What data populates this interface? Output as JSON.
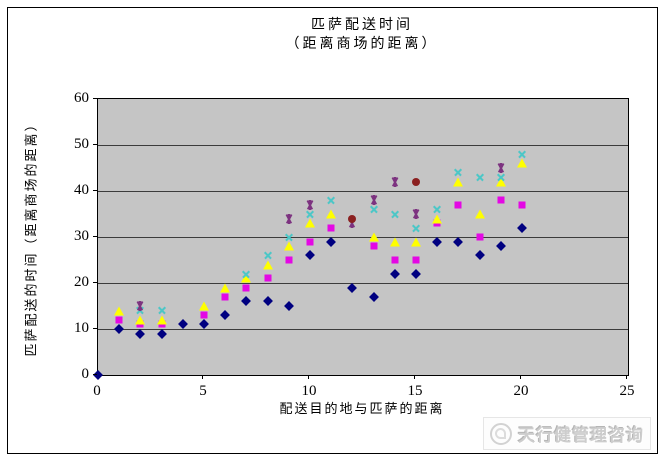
{
  "chart_data": {
    "type": "scatter",
    "title": "匹萨配送时间",
    "subtitle": "（距离商场的距离）",
    "xlabel": "配送目的地与匹萨的距离",
    "ylabel": "匹萨配送的时间（距离商场的距离）",
    "xlim": [
      0,
      25
    ],
    "ylim": [
      0,
      60
    ],
    "xticks": [
      0,
      5,
      10,
      15,
      20,
      25
    ],
    "yticks": [
      0,
      10,
      20,
      30,
      40,
      50,
      60
    ],
    "grid": "horizontal",
    "legend": "none",
    "plot_bg_color": "#c5c5c5",
    "series": [
      {
        "name": "diamond-series",
        "marker": "diamond",
        "color": "#000080",
        "points": [
          [
            0,
            0
          ],
          [
            1,
            10
          ],
          [
            2,
            9
          ],
          [
            3,
            9
          ],
          [
            4,
            11
          ],
          [
            5,
            11
          ],
          [
            6,
            13
          ],
          [
            7,
            16
          ],
          [
            8,
            16
          ],
          [
            9,
            15
          ],
          [
            10,
            26
          ],
          [
            11,
            29
          ],
          [
            12,
            19
          ],
          [
            13,
            17
          ],
          [
            14,
            22
          ],
          [
            15,
            22
          ],
          [
            16,
            29
          ],
          [
            17,
            29
          ],
          [
            18,
            26
          ],
          [
            19,
            28
          ],
          [
            20,
            32
          ]
        ]
      },
      {
        "name": "square-series",
        "marker": "square",
        "color": "#e408e4",
        "points": [
          [
            1,
            12
          ],
          [
            2,
            11
          ],
          [
            3,
            11
          ],
          [
            5,
            13
          ],
          [
            6,
            17
          ],
          [
            7,
            19
          ],
          [
            8,
            21
          ],
          [
            9,
            25
          ],
          [
            10,
            29
          ],
          [
            11,
            32
          ],
          [
            13,
            28
          ],
          [
            14,
            25
          ],
          [
            15,
            25
          ],
          [
            16,
            33
          ],
          [
            17,
            37
          ],
          [
            18,
            30
          ],
          [
            19,
            38
          ],
          [
            20,
            37
          ]
        ]
      },
      {
        "name": "triangle-series",
        "marker": "triangle",
        "color": "#ffff00",
        "points": [
          [
            1,
            14
          ],
          [
            2,
            12
          ],
          [
            3,
            12
          ],
          [
            5,
            15
          ],
          [
            6,
            19
          ],
          [
            7,
            21
          ],
          [
            8,
            24
          ],
          [
            9,
            28
          ],
          [
            10,
            33
          ],
          [
            11,
            35
          ],
          [
            13,
            30
          ],
          [
            14,
            29
          ],
          [
            15,
            29
          ],
          [
            16,
            34
          ],
          [
            17,
            42
          ],
          [
            18,
            35
          ],
          [
            19,
            42
          ],
          [
            20,
            46
          ]
        ]
      },
      {
        "name": "x-mark-series",
        "marker": "x",
        "color": "#4cc7c7",
        "points": [
          [
            2,
            14
          ],
          [
            3,
            14
          ],
          [
            7,
            22
          ],
          [
            8,
            26
          ],
          [
            9,
            30
          ],
          [
            10,
            35
          ],
          [
            11,
            38
          ],
          [
            13,
            36
          ],
          [
            14,
            35
          ],
          [
            15,
            32
          ],
          [
            16,
            36
          ],
          [
            17,
            44
          ],
          [
            18,
            43
          ],
          [
            19,
            43
          ],
          [
            20,
            48
          ]
        ]
      },
      {
        "name": "asterisk-series",
        "marker": "star",
        "color": "#7d3380",
        "points": [
          [
            2,
            15
          ],
          [
            9,
            34
          ],
          [
            10,
            37
          ],
          [
            12,
            33
          ],
          [
            13,
            38
          ],
          [
            14,
            42
          ],
          [
            15,
            35
          ],
          [
            19,
            45
          ]
        ]
      },
      {
        "name": "dark-red-circle-series",
        "marker": "circle",
        "color": "#8b2020",
        "points": [
          [
            12,
            34
          ],
          [
            15,
            42
          ]
        ]
      }
    ]
  },
  "watermark": {
    "text": "天行健管理咨询"
  }
}
